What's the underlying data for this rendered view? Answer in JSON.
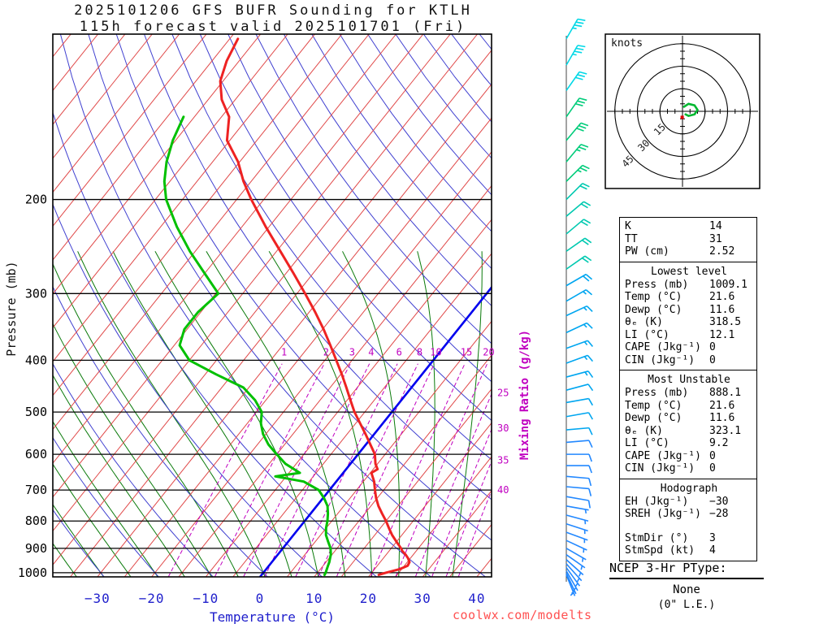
{
  "title": {
    "line1": "2025101206 GFS BUFR Sounding for KTLH",
    "line2": "115h forecast valid 2025101701 (Fri)"
  },
  "watermark": "coolwx.com/modelts",
  "axis": {
    "x_label": "Temperature (°C)",
    "y_label": "Pressure (mb)",
    "mixing_axis_label": "Mixing Ratio (g/kg)",
    "x_ticks": [
      -30,
      -20,
      -10,
      0,
      10,
      20,
      30,
      40
    ],
    "pressure_ticks": [
      200,
      300,
      400,
      500,
      600,
      700,
      800,
      900,
      1000
    ],
    "mixing_ratio_labels_top": [
      1,
      2,
      3,
      4,
      6,
      8,
      10,
      15,
      20
    ],
    "mixing_ratio_labels_right": [
      25,
      30,
      35,
      40
    ]
  },
  "hodograph_panel": {
    "units_label": "knots",
    "ring_labels": [
      15,
      30,
      45
    ]
  },
  "stats": {
    "indices": {
      "rows": [
        {
          "label": "K",
          "value": "14"
        },
        {
          "label": "TT",
          "value": "31"
        },
        {
          "label": "PW (cm)",
          "value": "2.52"
        }
      ]
    },
    "lowest_level": {
      "header": "Lowest level",
      "rows": [
        {
          "label": "Press (mb)",
          "value": "1009.1"
        },
        {
          "label": "Temp (°C)",
          "value": "21.6"
        },
        {
          "label": "Dewp (°C)",
          "value": "11.6"
        },
        {
          "label": "θₑ (K)",
          "value": "318.5"
        },
        {
          "label": "LI (°C)",
          "value": "12.1"
        },
        {
          "label": "CAPE (Jkg⁻¹)",
          "value": "0"
        },
        {
          "label": "CIN (Jkg⁻¹)",
          "value": "0"
        }
      ]
    },
    "most_unstable": {
      "header": "Most Unstable",
      "rows": [
        {
          "label": "Press (mb)",
          "value": "888.1"
        },
        {
          "label": "Temp (°C)",
          "value": "21.6"
        },
        {
          "label": "Dewp (°C)",
          "value": "11.6"
        },
        {
          "label": "θₑ (K)",
          "value": "323.1"
        },
        {
          "label": "LI (°C)",
          "value": "9.2"
        },
        {
          "label": "CAPE (Jkg⁻¹)",
          "value": "0"
        },
        {
          "label": "CIN (Jkg⁻¹)",
          "value": "0"
        }
      ]
    },
    "hodograph": {
      "header": "Hodograph",
      "rows": [
        {
          "label": "EH (Jkg⁻¹)",
          "value": "−30"
        },
        {
          "label": "SREH (Jkg⁻¹)",
          "value": "−28"
        },
        {
          "label": "",
          "value": ""
        },
        {
          "label": "StmDir (°)",
          "value": "3"
        },
        {
          "label": "StmSpd (kt)",
          "value": "4"
        }
      ]
    }
  },
  "ptype": {
    "heading": "NCEP 3-Hr PType:",
    "value": "None",
    "liquid_equiv": "(0\" L.E.)"
  },
  "colors": {
    "isotherm": "#e04848",
    "dry_adiabat": "#4040d0",
    "moist_adiabat": "#0a7a0a",
    "mixing": "#c000c0",
    "freezing": "#0000ee",
    "temp_curve": "#ee2222",
    "dewp_curve": "#00c000",
    "axis_temp": "#2020cc",
    "barb_bands": [
      "#00d8e6",
      "#00cc7a",
      "#00c9b0",
      "#00a6f0",
      "#2288ff"
    ]
  },
  "chart_data": {
    "type": "line",
    "subtype": "skew_t_log_p",
    "station": "KTLH",
    "pressure_window": [
      98,
      1018
    ],
    "isotherms_c": {
      "min": -120,
      "max": 45,
      "step": 5
    },
    "dry_adiabats_c": {
      "min": -60,
      "max": 190,
      "step": 10
    },
    "moist_adiabats_c": {
      "min": -40,
      "max": 35,
      "step": 5,
      "top": 250
    },
    "mixing_ratio_lines_gkg": [
      1,
      2,
      3,
      4,
      6,
      8,
      10,
      15,
      20,
      25,
      30,
      35,
      40
    ],
    "freezing_isotherm_c": 0,
    "temperature_profile": {
      "pressure_mb": [
        1009,
        1000,
        985,
        970,
        955,
        940,
        925,
        910,
        900,
        875,
        850,
        825,
        800,
        775,
        750,
        725,
        700,
        675,
        650,
        640,
        625,
        600,
        575,
        550,
        525,
        500,
        475,
        450,
        425,
        400,
        375,
        350,
        325,
        300,
        275,
        250,
        225,
        200,
        185,
        170,
        155,
        140,
        130,
        120,
        110,
        100
      ],
      "temp_c": [
        21.6,
        22.6,
        24.6,
        25.6,
        25.4,
        24.6,
        23.6,
        22.4,
        21.8,
        20.0,
        18.2,
        16.6,
        15.0,
        13.2,
        11.4,
        9.8,
        8.4,
        7.0,
        5.2,
        5.8,
        4.6,
        3.1,
        0.8,
        -1.6,
        -4.2,
        -6.9,
        -9.4,
        -12.0,
        -14.8,
        -17.9,
        -21.2,
        -24.8,
        -28.9,
        -33.5,
        -38.6,
        -44.3,
        -50.6,
        -57.3,
        -61.4,
        -65.3,
        -70.5,
        -73.6,
        -77.5,
        -80.5,
        -82.3,
        -83.5
      ]
    },
    "dewpoint_profile": {
      "pressure_mb": [
        1009,
        1000,
        985,
        970,
        955,
        940,
        925,
        900,
        875,
        850,
        825,
        800,
        775,
        750,
        725,
        700,
        675,
        660,
        650,
        625,
        600,
        575,
        550,
        525,
        500,
        475,
        450,
        425,
        400,
        375,
        350,
        325,
        300,
        275,
        250,
        225,
        200,
        185,
        170,
        155,
        140
      ],
      "dewp_c": [
        11.6,
        11.5,
        11.2,
        10.9,
        10.6,
        10.2,
        9.8,
        8.8,
        7.4,
        6.0,
        5.0,
        4.2,
        3.2,
        2.0,
        0.2,
        -2.0,
        -6.0,
        -12.0,
        -8.0,
        -12.0,
        -15.0,
        -18.0,
        -20.5,
        -22.5,
        -24.0,
        -27.0,
        -31.0,
        -38.0,
        -45.0,
        -49.0,
        -50.5,
        -50.5,
        -49.5,
        -55.0,
        -61.0,
        -67.0,
        -73.0,
        -76.0,
        -78.5,
        -80.5,
        -82.0
      ]
    },
    "winds_format": "[pressure_mb, dir_from_deg, speed_kt]",
    "winds": [
      [
        100,
        30,
        35
      ],
      [
        112,
        30,
        35
      ],
      [
        125,
        35,
        30
      ],
      [
        140,
        35,
        30
      ],
      [
        155,
        40,
        28
      ],
      [
        170,
        40,
        25
      ],
      [
        185,
        45,
        25
      ],
      [
        200,
        45,
        22
      ],
      [
        215,
        50,
        22
      ],
      [
        232,
        50,
        20
      ],
      [
        250,
        55,
        20
      ],
      [
        270,
        55,
        18
      ],
      [
        290,
        60,
        18
      ],
      [
        310,
        60,
        16
      ],
      [
        330,
        65,
        16
      ],
      [
        355,
        65,
        15
      ],
      [
        380,
        70,
        15
      ],
      [
        405,
        70,
        14
      ],
      [
        430,
        75,
        14
      ],
      [
        455,
        75,
        12
      ],
      [
        480,
        80,
        12
      ],
      [
        510,
        80,
        12
      ],
      [
        540,
        85,
        10
      ],
      [
        570,
        85,
        10
      ],
      [
        600,
        90,
        10
      ],
      [
        630,
        90,
        8
      ],
      [
        660,
        95,
        8
      ],
      [
        690,
        95,
        8
      ],
      [
        720,
        100,
        8
      ],
      [
        750,
        100,
        7
      ],
      [
        780,
        105,
        7
      ],
      [
        810,
        108,
        6
      ],
      [
        840,
        110,
        6
      ],
      [
        870,
        115,
        6
      ],
      [
        900,
        120,
        5
      ],
      [
        925,
        125,
        5
      ],
      [
        945,
        132,
        5
      ],
      [
        962,
        138,
        4
      ],
      [
        978,
        144,
        4
      ],
      [
        992,
        150,
        4
      ],
      [
        1002,
        155,
        3
      ],
      [
        1009,
        158,
        3
      ]
    ],
    "hodograph_trace_kt": [
      [
        1,
        3
      ],
      [
        4,
        5
      ],
      [
        8,
        4
      ],
      [
        10,
        1
      ],
      [
        8,
        -2
      ],
      [
        4,
        -3
      ],
      [
        2,
        -2
      ]
    ],
    "storm_motion": {
      "dir_deg": 3,
      "spd_kt": 4
    }
  }
}
